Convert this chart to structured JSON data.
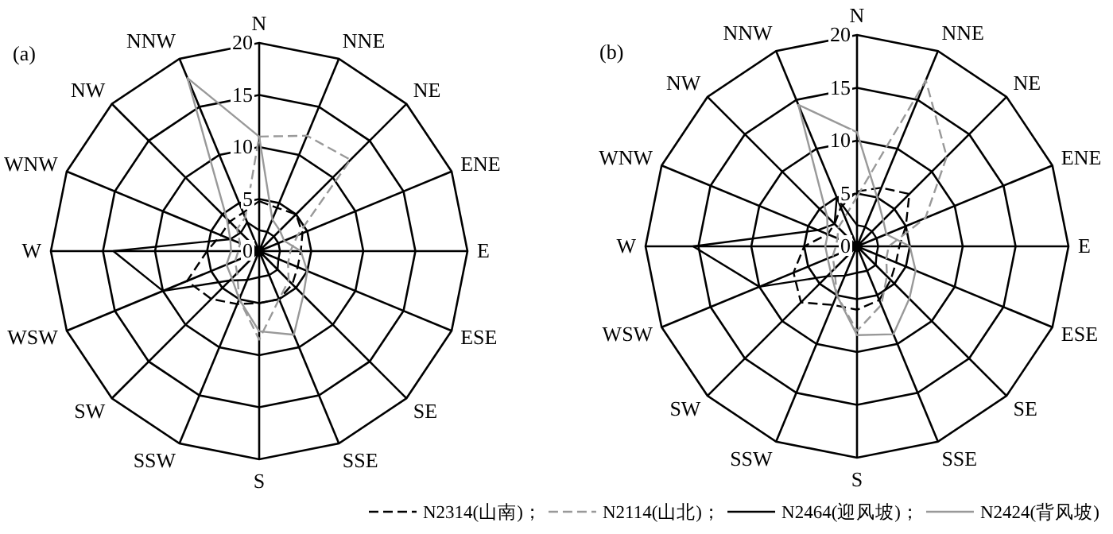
{
  "chart_data": [
    {
      "type": "radar",
      "title": "(a)",
      "categories": [
        "N",
        "NNE",
        "NE",
        "ENE",
        "E",
        "ESE",
        "SE",
        "SSE",
        "S",
        "SSW",
        "SW",
        "WSW",
        "W",
        "WNW",
        "NW",
        "NNW"
      ],
      "ylim": [
        0,
        20
      ],
      "yticks": [
        0,
        5,
        10,
        15,
        20
      ],
      "grid": true,
      "legend": "bottom",
      "series": [
        {
          "name": "N2314(山南)；",
          "color": "#000000",
          "line_style": "dashed",
          "values": [
            4.8,
            4.5,
            5,
            4.5,
            4,
            4,
            4.5,
            5,
            5,
            5.5,
            6.5,
            7.5,
            5,
            4,
            4,
            4
          ]
        },
        {
          "name": "N2114(山北)；",
          "color": "#999999",
          "line_style": "dashed",
          "values": [
            11,
            12,
            12.4,
            4,
            3,
            3,
            4,
            5,
            8.5,
            5,
            3,
            2.5,
            2,
            2,
            3,
            3.5
          ]
        },
        {
          "name": "N2464(迎风坡)；",
          "color": "#000000",
          "line_style": "solid",
          "values": [
            2,
            2,
            2,
            2,
            2,
            2,
            2.5,
            2.5,
            2.5,
            3,
            4,
            10,
            14,
            3,
            2.5,
            3
          ]
        },
        {
          "name": "N2424(背风坡)",
          "color": "#999999",
          "line_style": "solid",
          "values": [
            11,
            3.3,
            2.8,
            2.6,
            4,
            5,
            6,
            8.7,
            7.7,
            5,
            3.7,
            3.4,
            2.7,
            3,
            4.4,
            18
          ]
        }
      ]
    },
    {
      "type": "radar",
      "title": "(b)",
      "categories": [
        "N",
        "NNE",
        "NE",
        "ENE",
        "E",
        "ESE",
        "SE",
        "SSE",
        "S",
        "SSW",
        "SW",
        "WSW",
        "W",
        "WNW",
        "NW",
        "NNW"
      ],
      "ylim": [
        0,
        20
      ],
      "yticks": [
        0,
        5,
        10,
        15,
        20
      ],
      "grid": true,
      "series": [
        {
          "color": "#000000",
          "line_style": "dashed",
          "values": [
            5.2,
            6,
            7,
            5,
            4,
            4,
            4.5,
            5.5,
            6,
            6,
            7.5,
            6.5,
            5,
            3,
            3,
            4
          ]
        },
        {
          "color": "#999999",
          "line_style": "dashed",
          "values": [
            4.7,
            17,
            12,
            7,
            3,
            3,
            4,
            6,
            8,
            5,
            3,
            2.5,
            2,
            2,
            2.5,
            3
          ]
        },
        {
          "color": "#000000",
          "line_style": "solid",
          "values": [
            2,
            2,
            2,
            2,
            2,
            2,
            2.5,
            2.5,
            2.5,
            3,
            4,
            10,
            15.5,
            4,
            3,
            5
          ]
        },
        {
          "color": "#999999",
          "line_style": "solid",
          "values": [
            10.8,
            5,
            3.5,
            3,
            5,
            6,
            7,
            9,
            8.4,
            5,
            3.5,
            3,
            3,
            3,
            4,
            14.5
          ]
        }
      ]
    }
  ]
}
